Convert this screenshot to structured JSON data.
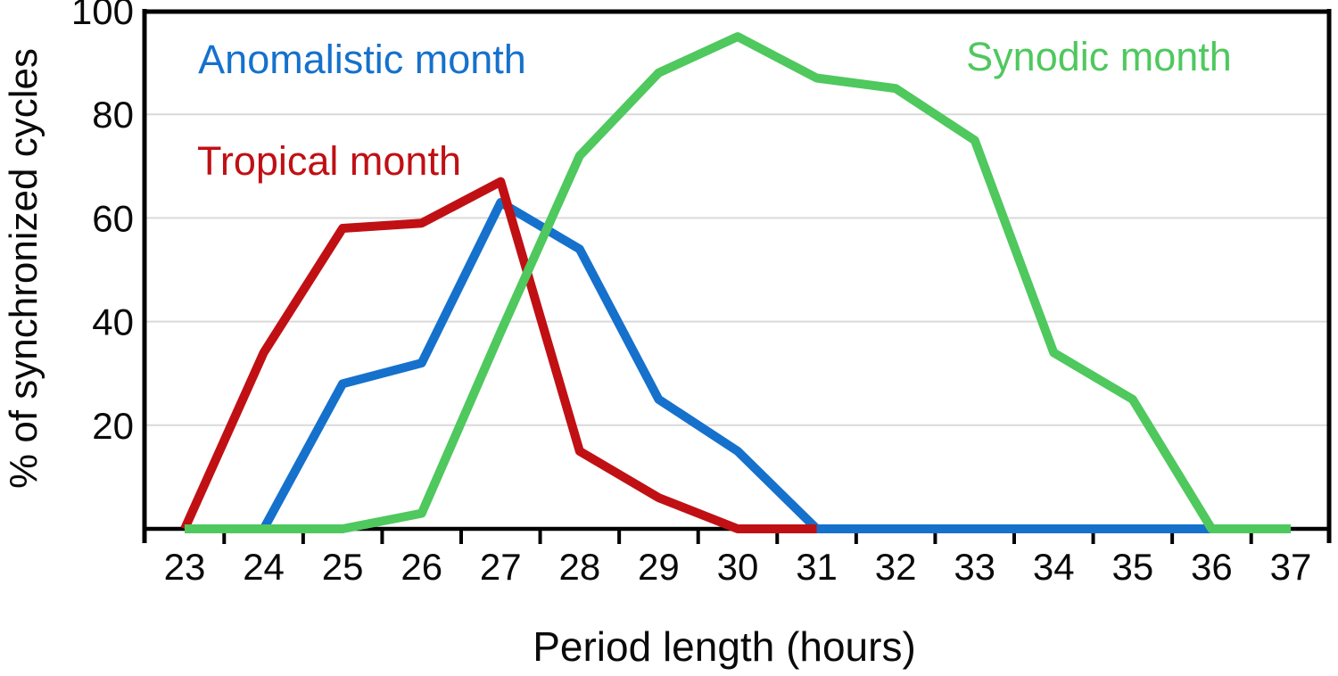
{
  "chart_data": {
    "type": "line",
    "title": "",
    "xlabel": "Period length (hours)",
    "ylabel": "% of synchronized cycles",
    "xlim": [
      22.5,
      37.5
    ],
    "ylim": [
      0,
      100
    ],
    "x_tick_labels": [
      "23",
      "24",
      "25",
      "26",
      "27",
      "28",
      "29",
      "30",
      "31",
      "32",
      "33",
      "34",
      "35",
      "36",
      "37"
    ],
    "x_tick_values": [
      23,
      24,
      25,
      26,
      27,
      28,
      29,
      30,
      31,
      32,
      33,
      34,
      35,
      36,
      37
    ],
    "x_minor_tick_values": [
      23.5,
      24.5,
      25.5,
      26.5,
      27.5,
      28.5,
      29.5,
      30.5,
      31.5,
      32.5,
      33.5,
      34.5,
      35.5,
      36.5
    ],
    "y_tick_labels": [
      "20",
      "40",
      "60",
      "80",
      "100"
    ],
    "y_tick_values": [
      20,
      40,
      60,
      80,
      100
    ],
    "gridlines_horizontal_at": [
      20,
      40,
      60,
      80
    ],
    "grid_color": "#d9d9d9",
    "axis_color": "#000000",
    "legend_position": "inline-labels",
    "series": [
      {
        "name": "Anomalistic month",
        "color": "#1571cc",
        "points": [
          [
            24,
            0
          ],
          [
            25,
            28
          ],
          [
            26,
            32
          ],
          [
            27,
            63
          ],
          [
            28,
            54
          ],
          [
            29,
            25
          ],
          [
            30,
            15
          ],
          [
            31,
            0
          ],
          [
            32,
            0
          ],
          [
            33,
            0
          ],
          [
            34,
            0
          ],
          [
            35,
            0
          ],
          [
            36,
            0
          ]
        ]
      },
      {
        "name": "Tropical month",
        "color": "#c01014",
        "points": [
          [
            23,
            0
          ],
          [
            24,
            34
          ],
          [
            25,
            58
          ],
          [
            26,
            59
          ],
          [
            27,
            67
          ],
          [
            28,
            15
          ],
          [
            29,
            6
          ],
          [
            30,
            0
          ],
          [
            31,
            0
          ]
        ]
      },
      {
        "name": "Synodic month",
        "color": "#4fc85e",
        "points": [
          [
            23,
            0
          ],
          [
            24,
            0
          ],
          [
            25,
            0
          ],
          [
            26,
            3
          ],
          [
            27,
            38
          ],
          [
            28,
            72
          ],
          [
            29,
            88
          ],
          [
            30,
            95
          ],
          [
            31,
            87
          ],
          [
            32,
            85
          ],
          [
            33,
            75
          ],
          [
            34,
            34
          ],
          [
            35,
            25
          ],
          [
            36,
            0
          ],
          [
            37,
            0
          ]
        ]
      }
    ]
  }
}
